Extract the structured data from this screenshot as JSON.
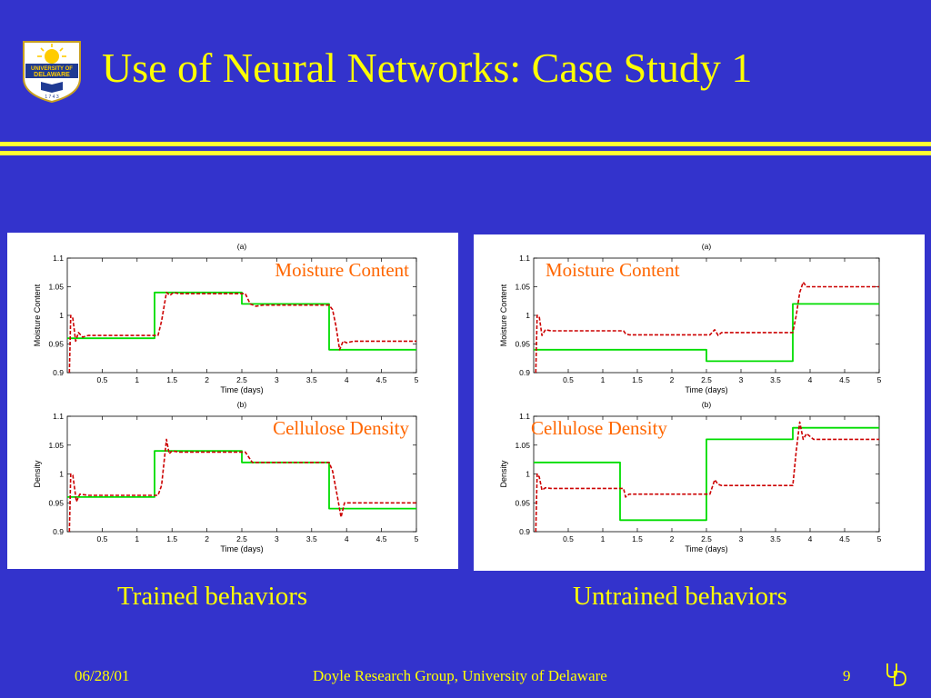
{
  "slide": {
    "title": "Use of Neural Networks: Case Study 1",
    "logo": {
      "icon": "university-of-delaware-seal",
      "text_lines": [
        "UNIVERSITY OF",
        "DELAWARE",
        "1 7 4 3"
      ]
    },
    "captions": {
      "left": "Trained behaviors",
      "right": "Untrained behaviors"
    },
    "footer": {
      "date": "06/28/01",
      "center": "Doyle Research Group, University of Delaware",
      "page": "9",
      "mark_icon": "ud-monogram"
    },
    "colors": {
      "background": "#3333cc",
      "title": "#ffff00",
      "rule": "#ffff33",
      "overlay_text": "#ff6600",
      "series_green": "#00dd00",
      "series_red": "#cc0000"
    }
  },
  "chart_data": [
    {
      "panel": "trained",
      "subplot": "(a)",
      "type": "line",
      "title": "(a)",
      "overlay_label": "Moisture Content",
      "xlabel": "Time (days)",
      "ylabel": "Moisture Content",
      "xlim": [
        0,
        5
      ],
      "ylim": [
        0.9,
        1.1
      ],
      "xticks": [
        0.5,
        1,
        1.5,
        2,
        2.5,
        3,
        3.5,
        4,
        4.5,
        5
      ],
      "xtick_labels": [
        "0.5",
        "1",
        "1.5",
        "2",
        "2.5",
        "3",
        "3.5",
        "4",
        "4.5",
        "5"
      ],
      "yticks": [
        0.9,
        0.95,
        1,
        1.05,
        1.1
      ],
      "ytick_labels": [
        "0.9",
        "0.95",
        "1",
        "1.05",
        "1.1"
      ],
      "series": [
        {
          "color": "#00dd00",
          "style": "solid",
          "x": [
            0,
            1.25,
            1.25,
            2.5,
            2.5,
            3.75,
            3.75,
            5
          ],
          "y": [
            0.96,
            0.96,
            1.04,
            1.04,
            1.02,
            1.02,
            0.94,
            0.94
          ]
        },
        {
          "color": "#cc0000",
          "style": "dashed",
          "x": [
            0.03,
            0.05,
            0.08,
            0.12,
            0.16,
            0.22,
            0.3,
            1.3,
            1.35,
            1.42,
            1.47,
            1.52,
            1.6,
            2.55,
            2.62,
            2.7,
            2.8,
            3.75,
            3.8,
            3.85,
            3.9,
            3.95,
            4.0,
            4.1,
            5.0
          ],
          "y": [
            0.9,
            1.0,
            0.995,
            0.955,
            0.97,
            0.962,
            0.965,
            0.965,
            0.99,
            1.04,
            1.035,
            1.04,
            1.038,
            1.038,
            1.02,
            1.016,
            1.018,
            1.018,
            1.01,
            0.98,
            0.94,
            0.955,
            0.952,
            0.955,
            0.955
          ]
        }
      ]
    },
    {
      "panel": "trained",
      "subplot": "(b)",
      "type": "line",
      "title": "(b)",
      "overlay_label": "Cellulose Density",
      "xlabel": "Time (days)",
      "ylabel": "Density",
      "xlim": [
        0,
        5
      ],
      "ylim": [
        0.9,
        1.1
      ],
      "xticks": [
        0.5,
        1,
        1.5,
        2,
        2.5,
        3,
        3.5,
        4,
        4.5,
        5
      ],
      "xtick_labels": [
        "0.5",
        "1",
        "1.5",
        "2",
        "2.5",
        "3",
        "3.5",
        "4",
        "4.5",
        "5"
      ],
      "yticks": [
        0.9,
        0.95,
        1,
        1.05,
        1.1
      ],
      "ytick_labels": [
        "0.9",
        "0.95",
        "1",
        "1.05",
        "1.1"
      ],
      "series": [
        {
          "color": "#00dd00",
          "style": "solid",
          "x": [
            0,
            1.25,
            1.25,
            2.5,
            2.5,
            3.75,
            3.75,
            5
          ],
          "y": [
            0.96,
            0.96,
            1.04,
            1.04,
            1.02,
            1.02,
            0.94,
            0.94
          ]
        },
        {
          "color": "#cc0000",
          "style": "dashed",
          "x": [
            0.03,
            0.05,
            0.08,
            0.13,
            0.18,
            0.3,
            1.3,
            1.35,
            1.42,
            1.46,
            1.5,
            1.6,
            2.55,
            2.65,
            2.75,
            3.75,
            3.8,
            3.87,
            3.92,
            3.97,
            4.05,
            5.0
          ],
          "y": [
            0.9,
            1.0,
            0.998,
            0.952,
            0.965,
            0.963,
            0.963,
            0.98,
            1.06,
            1.035,
            1.04,
            1.038,
            1.038,
            1.02,
            1.02,
            1.02,
            1.005,
            0.96,
            0.925,
            0.95,
            0.95,
            0.95
          ]
        }
      ]
    },
    {
      "panel": "untrained",
      "subplot": "(a)",
      "type": "line",
      "title": "(a)",
      "overlay_label": "Moisture Content",
      "xlabel": "Time (days)",
      "ylabel": "Moisture Content",
      "xlim": [
        0,
        5
      ],
      "ylim": [
        0.9,
        1.1
      ],
      "xticks": [
        0.5,
        1,
        1.5,
        2,
        2.5,
        3,
        3.5,
        4,
        4.5,
        5
      ],
      "xtick_labels": [
        "0.5",
        "1",
        "1.5",
        "2",
        "2.5",
        "3",
        "3.5",
        "4",
        "4.5",
        "5"
      ],
      "yticks": [
        0.9,
        0.95,
        1,
        1.05,
        1.1
      ],
      "ytick_labels": [
        "0.9",
        "0.95",
        "1",
        "1.05",
        "1.1"
      ],
      "series": [
        {
          "color": "#00dd00",
          "style": "solid",
          "x": [
            0,
            2.5,
            2.5,
            3.75,
            3.75,
            5
          ],
          "y": [
            0.94,
            0.94,
            0.92,
            0.92,
            1.02,
            1.02
          ]
        },
        {
          "color": "#cc0000",
          "style": "dashed",
          "x": [
            0.03,
            0.05,
            0.08,
            0.12,
            0.17,
            0.25,
            1.3,
            1.33,
            1.38,
            1.45,
            2.55,
            2.62,
            2.67,
            2.72,
            2.8,
            3.75,
            3.8,
            3.85,
            3.9,
            3.95,
            4.05,
            5.0
          ],
          "y": [
            0.9,
            1.0,
            0.998,
            0.965,
            0.975,
            0.973,
            0.973,
            0.968,
            0.966,
            0.966,
            0.966,
            0.975,
            0.965,
            0.97,
            0.97,
            0.97,
            1.0,
            1.04,
            1.058,
            1.05,
            1.05,
            1.05
          ]
        }
      ]
    },
    {
      "panel": "untrained",
      "subplot": "(b)",
      "type": "line",
      "title": "(b)",
      "overlay_label": "Cellulose Density",
      "xlabel": "Time (days)",
      "ylabel": "Density",
      "xlim": [
        0,
        5
      ],
      "ylim": [
        0.9,
        1.1
      ],
      "xticks": [
        0.5,
        1,
        1.5,
        2,
        2.5,
        3,
        3.5,
        4,
        4.5,
        5
      ],
      "xtick_labels": [
        "0.5",
        "1",
        "1.5",
        "2",
        "2.5",
        "3",
        "3.5",
        "4",
        "4.5",
        "5"
      ],
      "yticks": [
        0.9,
        0.95,
        1,
        1.05,
        1.1
      ],
      "ytick_labels": [
        "0.9",
        "0.95",
        "1",
        "1.05",
        "1.1"
      ],
      "series": [
        {
          "color": "#00dd00",
          "style": "solid",
          "x": [
            0,
            1.25,
            1.25,
            2.5,
            2.5,
            3.75,
            3.75,
            5
          ],
          "y": [
            1.02,
            1.02,
            0.92,
            0.92,
            1.06,
            1.06,
            1.08,
            1.08
          ]
        },
        {
          "color": "#cc0000",
          "style": "dashed",
          "x": [
            0.03,
            0.05,
            0.08,
            0.12,
            0.17,
            0.25,
            1.3,
            1.33,
            1.38,
            1.45,
            2.55,
            2.62,
            2.67,
            2.72,
            2.8,
            3.75,
            3.8,
            3.85,
            3.9,
            3.95,
            4.05,
            5.0
          ],
          "y": [
            0.9,
            1.0,
            0.995,
            0.972,
            0.976,
            0.975,
            0.975,
            0.96,
            0.965,
            0.965,
            0.965,
            0.99,
            0.982,
            0.98,
            0.98,
            0.98,
            1.04,
            1.09,
            1.06,
            1.07,
            1.06,
            1.06
          ]
        }
      ]
    }
  ]
}
